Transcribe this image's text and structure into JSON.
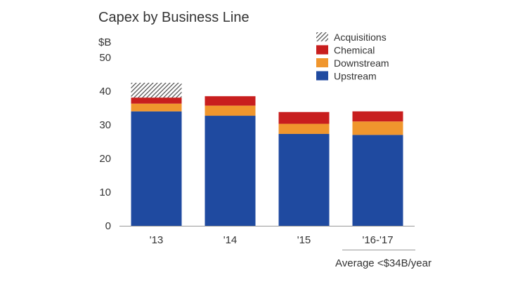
{
  "chart_data": {
    "type": "bar",
    "stacked": true,
    "title": "Capex by Business Line",
    "ylabel": "$B",
    "ylim": [
      0,
      50
    ],
    "yticks": [
      0,
      10,
      20,
      30,
      40,
      50
    ],
    "categories": [
      "'13",
      "'14",
      "'15",
      "'16-'17"
    ],
    "series": [
      {
        "name": "Upstream",
        "color": "#1f4aa0",
        "pattern": "solid",
        "values": [
          34.0,
          32.7,
          27.3,
          27.0
        ]
      },
      {
        "name": "Downstream",
        "color": "#f0962d",
        "pattern": "solid",
        "values": [
          2.3,
          3.0,
          3.0,
          4.0
        ]
      },
      {
        "name": "Chemical",
        "color": "#c81e1e",
        "pattern": "solid",
        "values": [
          1.8,
          2.8,
          3.5,
          3.0
        ]
      },
      {
        "name": "Acquisitions",
        "color": "#555555",
        "pattern": "hatch",
        "values": [
          4.4,
          0,
          0,
          0
        ]
      }
    ],
    "legend_order": [
      "Acquisitions",
      "Chemical",
      "Downstream",
      "Upstream"
    ],
    "legend_position": "top-right",
    "grid": false,
    "annotation": "Average <$34B/year"
  }
}
